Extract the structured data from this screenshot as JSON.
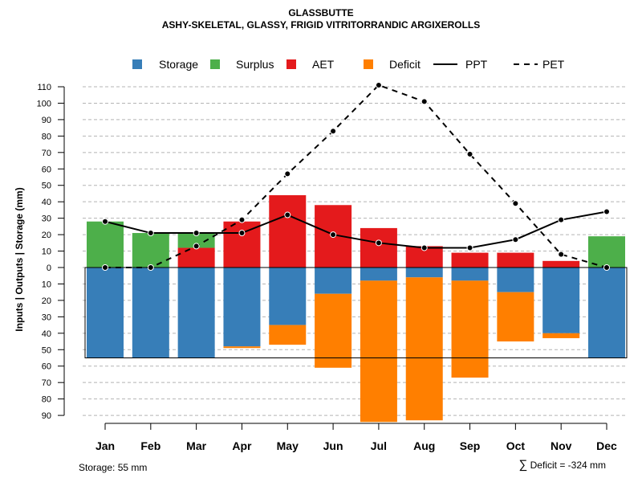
{
  "title": "GLASSBUTTE",
  "subtitle": "ASHY-SKELETAL, GLASSY, FRIGID VITRITORRANDIC ARGIXEROLLS",
  "footer": {
    "storage_note": "Storage: 55 mm",
    "deficit_symbol": "∑",
    "deficit_note": "Deficit = -324 mm"
  },
  "colors": {
    "storage": "#377EB8",
    "surplus": "#4DAF4A",
    "aet": "#E41A1C",
    "deficit": "#FF7F00",
    "lines": "#000000",
    "grid": "#b4b4b4"
  },
  "chart_data": {
    "type": "bar",
    "title": "GLASSBUTTE",
    "subtitle": "ASHY-SKELETAL, GLASSY, FRIGID VITRITORRANDIC ARGIXEROLLS",
    "ylabel": "Inputs | Outputs | Storage    (mm)",
    "xlabel": "",
    "categories": [
      "Jan",
      "Feb",
      "Mar",
      "Apr",
      "May",
      "Jun",
      "Jul",
      "Aug",
      "Sep",
      "Oct",
      "Nov",
      "Dec"
    ],
    "ylim": [
      -90,
      110
    ],
    "ytick_values": [
      110,
      100,
      90,
      80,
      70,
      60,
      50,
      40,
      30,
      20,
      10,
      0,
      -10,
      -20,
      -30,
      -40,
      -50,
      -60,
      -70,
      -80,
      -90
    ],
    "ytick_labels": [
      "110",
      "100",
      "90",
      "80",
      "70",
      "60",
      "50",
      "40",
      "30",
      "20",
      "10",
      "0",
      "10",
      "20",
      "30",
      "40",
      "50",
      "60",
      "70",
      "80",
      "90"
    ],
    "grid": true,
    "legend": {
      "position": "top",
      "entries": [
        {
          "label": "Storage",
          "kind": "box",
          "color": "#377EB8"
        },
        {
          "label": "Surplus",
          "kind": "box",
          "color": "#4DAF4A"
        },
        {
          "label": "AET",
          "kind": "box",
          "color": "#E41A1C"
        },
        {
          "label": "Deficit",
          "kind": "box",
          "color": "#FF7F00"
        },
        {
          "label": "PPT",
          "kind": "solid"
        },
        {
          "label": "PET",
          "kind": "dashed"
        }
      ]
    },
    "storage_capacity": 55,
    "series": [
      {
        "name": "AET",
        "values": [
          0,
          0,
          12,
          28,
          44,
          38,
          24,
          13,
          9,
          9,
          4,
          0
        ]
      },
      {
        "name": "Surplus",
        "values": [
          28,
          21,
          9,
          0,
          0,
          0,
          0,
          0,
          0,
          0,
          0,
          19
        ]
      },
      {
        "name": "Storage",
        "values": [
          55,
          55,
          55,
          48,
          35,
          16,
          8,
          6,
          8,
          15,
          40,
          55
        ]
      },
      {
        "name": "Deficit",
        "values": [
          0,
          0,
          0,
          1,
          12,
          45,
          86,
          87,
          59,
          30,
          3,
          0
        ]
      },
      {
        "name": "PPT",
        "style": "solid",
        "values": [
          28,
          21,
          21,
          21,
          32,
          20,
          15,
          12,
          12,
          17,
          29,
          34
        ]
      },
      {
        "name": "PET",
        "style": "dashed",
        "values": [
          0,
          0,
          13,
          29,
          57,
          83,
          111,
          101,
          69,
          39,
          8,
          0
        ]
      }
    ]
  }
}
